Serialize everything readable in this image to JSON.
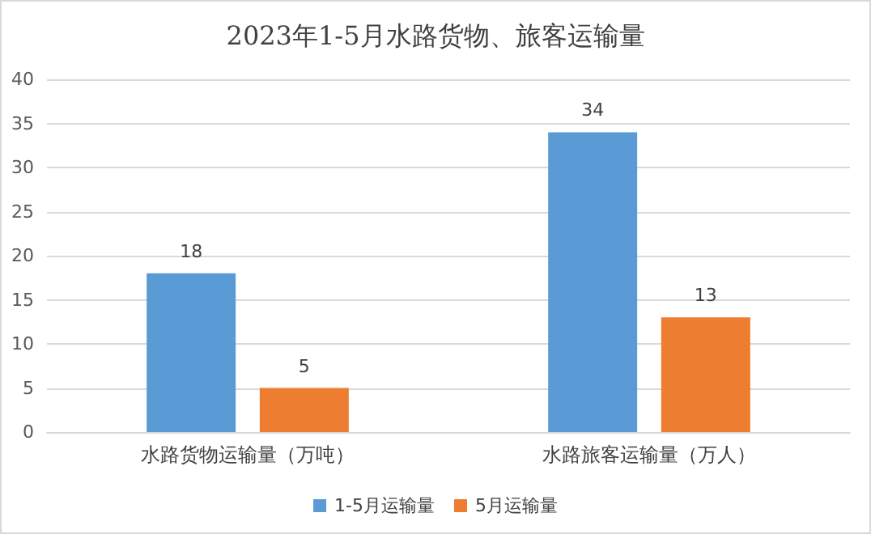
{
  "chart_data": {
    "type": "bar",
    "title": "2023年1-5月水路货物、旅客运输量",
    "categories": [
      "水路货物运输量（万吨）",
      "水路旅客运输量（万人）"
    ],
    "series": [
      {
        "name": "1-5月运输量",
        "color": "#5b9bd5",
        "values": [
          18,
          34
        ]
      },
      {
        "name": "5月运输量",
        "color": "#ed7d31",
        "values": [
          5,
          13
        ]
      }
    ],
    "ylim": [
      0,
      40
    ],
    "yticks": [
      0,
      5,
      10,
      15,
      20,
      25,
      30,
      35,
      40
    ],
    "grid": "y",
    "legend": "bottom",
    "data_labels": true
  }
}
